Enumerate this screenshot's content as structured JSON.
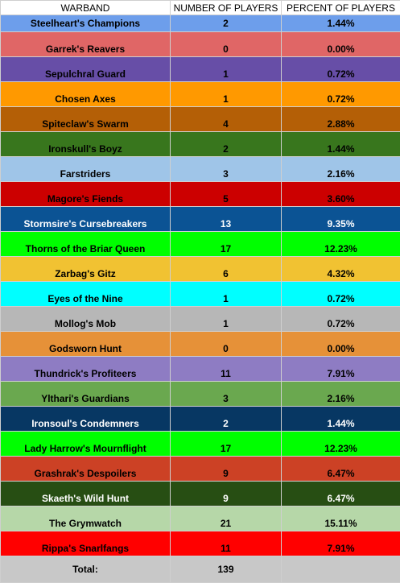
{
  "headers": [
    "WARBAND",
    "NUMBER OF PLAYERS",
    "PERCENT OF PLAYERS"
  ],
  "rows": [
    {
      "name": "Steelheart's Champions",
      "players": "2",
      "percent": "1.44%",
      "bg": "#6d9eeb",
      "fg": "#000000"
    },
    {
      "name": "Garrek's Reavers",
      "players": "0",
      "percent": "0.00%",
      "bg": "#e06666",
      "fg": "#000000"
    },
    {
      "name": "Sepulchral Guard",
      "players": "1",
      "percent": "0.72%",
      "bg": "#674ea7",
      "fg": "#000000"
    },
    {
      "name": "Chosen Axes",
      "players": "1",
      "percent": "0.72%",
      "bg": "#ff9900",
      "fg": "#000000"
    },
    {
      "name": "Spiteclaw's Swarm",
      "players": "4",
      "percent": "2.88%",
      "bg": "#b45f06",
      "fg": "#000000"
    },
    {
      "name": "Ironskull's Boyz",
      "players": "2",
      "percent": "1.44%",
      "bg": "#38761d",
      "fg": "#000000"
    },
    {
      "name": "Farstriders",
      "players": "3",
      "percent": "2.16%",
      "bg": "#9fc5e8",
      "fg": "#000000"
    },
    {
      "name": "Magore's Fiends",
      "players": "5",
      "percent": "3.60%",
      "bg": "#cc0000",
      "fg": "#000000"
    },
    {
      "name": "Stormsire's Cursebreakers",
      "players": "13",
      "percent": "9.35%",
      "bg": "#0b5394",
      "fg": "#ffffff"
    },
    {
      "name": "Thorns of the Briar Queen",
      "players": "17",
      "percent": "12.23%",
      "bg": "#00ff00",
      "fg": "#000000"
    },
    {
      "name": "Zarbag's Gitz",
      "players": "6",
      "percent": "4.32%",
      "bg": "#f1c232",
      "fg": "#000000"
    },
    {
      "name": "Eyes of the Nine",
      "players": "1",
      "percent": "0.72%",
      "bg": "#00ffff",
      "fg": "#000000"
    },
    {
      "name": "Mollog's Mob",
      "players": "1",
      "percent": "0.72%",
      "bg": "#b7b7b7",
      "fg": "#000000"
    },
    {
      "name": "Godsworn Hunt",
      "players": "0",
      "percent": "0.00%",
      "bg": "#e69138",
      "fg": "#000000"
    },
    {
      "name": "Thundrick's Profiteers",
      "players": "11",
      "percent": "7.91%",
      "bg": "#8e7cc3",
      "fg": "#000000"
    },
    {
      "name": "Ylthari's Guardians",
      "players": "3",
      "percent": "2.16%",
      "bg": "#6aa84f",
      "fg": "#000000"
    },
    {
      "name": "Ironsoul's Condemners",
      "players": "2",
      "percent": "1.44%",
      "bg": "#073763",
      "fg": "#ffffff"
    },
    {
      "name": "Lady Harrow's Mournflight",
      "players": "17",
      "percent": "12.23%",
      "bg": "#00ff00",
      "fg": "#000000"
    },
    {
      "name": "Grashrak's Despoilers",
      "players": "9",
      "percent": "6.47%",
      "bg": "#cc4125",
      "fg": "#000000"
    },
    {
      "name": "Skaeth's Wild Hunt",
      "players": "9",
      "percent": "6.47%",
      "bg": "#274e13",
      "fg": "#ffffff"
    },
    {
      "name": "The Grymwatch",
      "players": "21",
      "percent": "15.11%",
      "bg": "#b6d7a8",
      "fg": "#000000"
    },
    {
      "name": "Rippa's Snarlfangs",
      "players": "11",
      "percent": "7.91%",
      "bg": "#ff0000",
      "fg": "#000000"
    }
  ],
  "total": {
    "label": "Total:",
    "players": "139",
    "percent": ""
  }
}
